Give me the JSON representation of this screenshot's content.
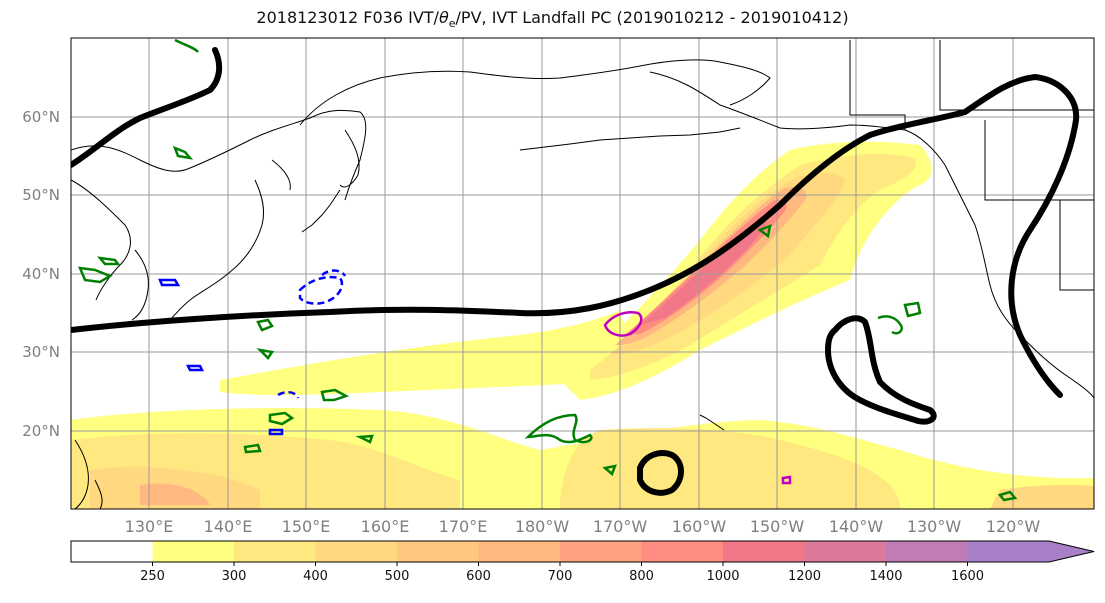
{
  "title": "2018123012 F036 IVT/θe/PV, IVT Landfall PC (2019010212 - 2019010412)",
  "title_parts": {
    "prefix": "2018123012 F036 IVT/",
    "theta": "θ",
    "sub": "e",
    "suffix": "/PV, IVT Landfall PC (2019010212 - 2019010412)"
  },
  "lat_labels": [
    "60°N",
    "50°N",
    "40°N",
    "30°N",
    "20°N"
  ],
  "lon_labels": [
    "130°E",
    "140°E",
    "150°E",
    "160°E",
    "170°E",
    "180°W",
    "170°W",
    "160°W",
    "150°W",
    "140°W",
    "130°W",
    "120°W"
  ],
  "colorbar": {
    "ticks": [
      "250",
      "300",
      "400",
      "500",
      "600",
      "700",
      "800",
      "1000",
      "1200",
      "1400",
      "1600"
    ],
    "colors": [
      "#ffffff",
      "#ffff80",
      "#ffe880",
      "#ffd880",
      "#ffc880",
      "#ffb880",
      "#ffa080",
      "#ff8c80",
      "#f07888",
      "#dc7898",
      "#c07cb4",
      "#a880c8"
    ]
  },
  "colors": {
    "jet_contour": "#000000",
    "pv_contour": "#008000",
    "neg_contour": "#0000ff",
    "mag_contour": "#c000c0"
  }
}
